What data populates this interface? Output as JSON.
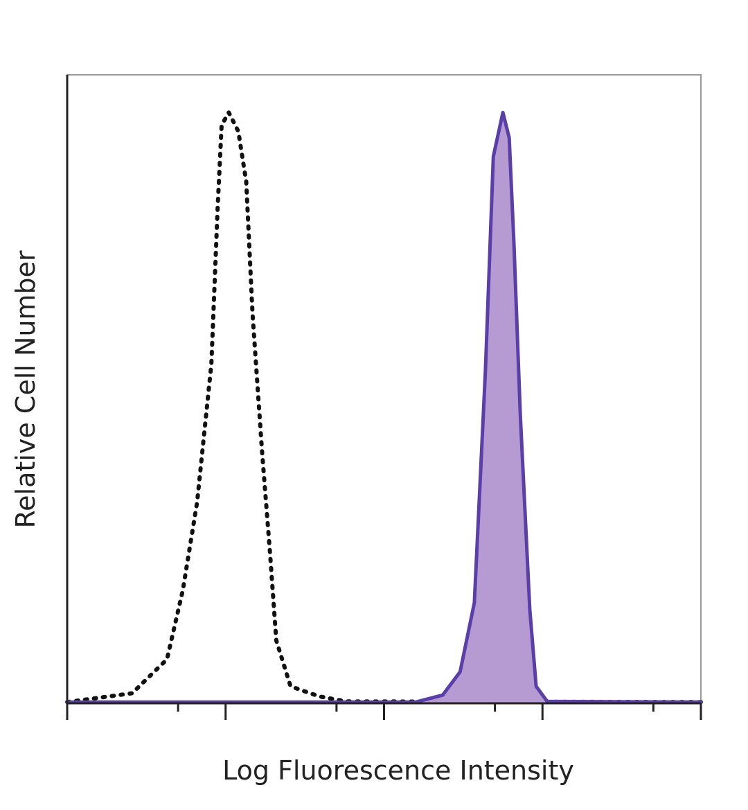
{
  "chart_data": {
    "type": "histogram-overlay",
    "xlabel": "Log Fluorescence Intensity",
    "ylabel": "Relative Cell Number",
    "xlim": [
      0,
      4
    ],
    "ylim": [
      0,
      100
    ],
    "log_x": true,
    "xticks": [
      0,
      1,
      2,
      3,
      4
    ],
    "xminorticks": [
      0.7,
      1.7,
      2.7,
      3.7
    ],
    "series": [
      {
        "color": "#111111",
        "style": "dotted",
        "filled": false,
        "x": [
          0,
          0.41,
          0.63,
          0.73,
          0.82,
          0.91,
          0.95,
          0.975,
          1.02,
          1.08,
          1.13,
          1.17,
          1.23,
          1.28,
          1.32,
          1.41,
          1.59,
          1.76,
          4
        ],
        "values": [
          0.2,
          1.6,
          7,
          18,
          32,
          54,
          79,
          92,
          94,
          91,
          83,
          62,
          40,
          24,
          10,
          2.7,
          1.1,
          0.3,
          0.2
        ]
      },
      {
        "color": "#5a3fa8",
        "fill": "#b59bd2",
        "style": "solid",
        "filled": true,
        "x": [
          0,
          2.2,
          2.37,
          2.48,
          2.57,
          2.64,
          2.69,
          2.75,
          2.79,
          2.82,
          2.86,
          2.92,
          2.96,
          3.03,
          4
        ],
        "values": [
          0.2,
          0.2,
          1.3,
          5,
          16,
          53,
          87,
          94,
          90,
          73,
          46,
          15,
          2.7,
          0.3,
          0.2
        ]
      }
    ]
  }
}
